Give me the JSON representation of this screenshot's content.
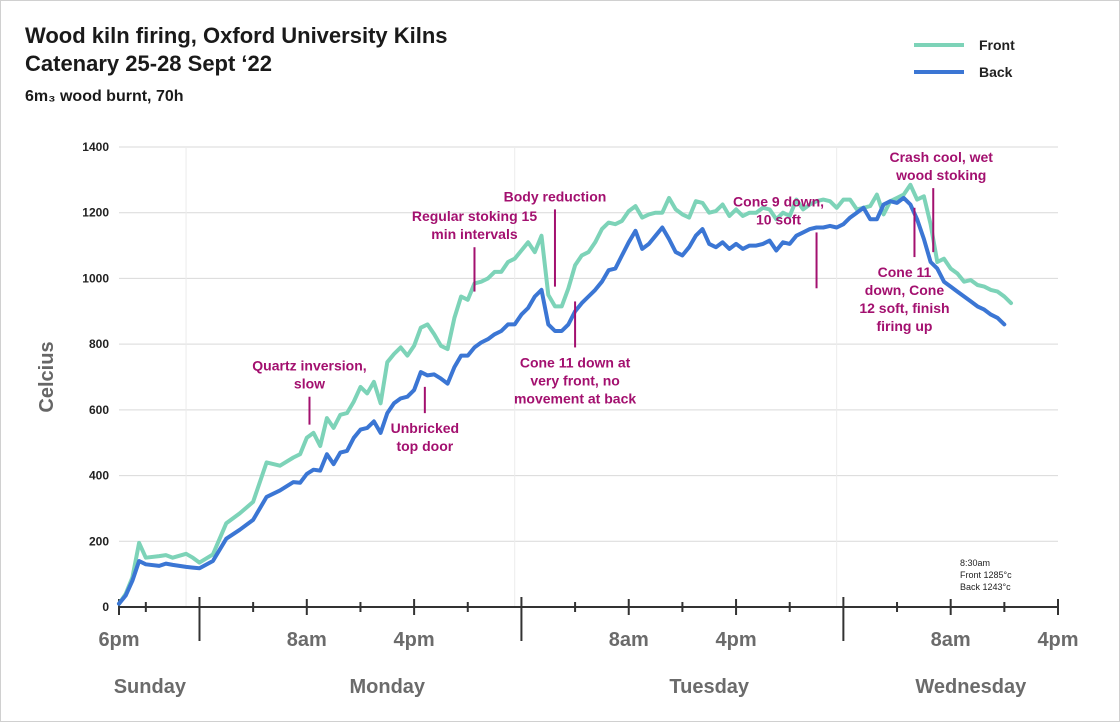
{
  "chart_data": {
    "type": "line",
    "title_lines": [
      "Wood kiln firing, Oxford University Kilns",
      "Catenary 25-28 Sept ‘22"
    ],
    "subtitle": "6m₃ wood burnt, 70h",
    "ylabel": "Celcius",
    "ylim": [
      0,
      1400
    ],
    "xlim": [
      0,
      70
    ],
    "yticks": [
      "0",
      "200",
      "400",
      "600",
      "800",
      "1000",
      "1200",
      "1400"
    ],
    "ytick_values": [
      0,
      200,
      400,
      600,
      800,
      1000,
      1200,
      1400
    ],
    "xticks": [
      {
        "label": "6pm",
        "hour": 0
      },
      {
        "label": "8am",
        "hour": 14
      },
      {
        "label": "4pm",
        "hour": 22
      },
      {
        "label": "8am",
        "hour": 38
      },
      {
        "label": "4pm",
        "hour": 46
      },
      {
        "label": "8am",
        "hour": 62
      },
      {
        "label": "4pm",
        "hour": 70
      }
    ],
    "day_boundaries": [
      6,
      30,
      54
    ],
    "minor_ticks": [
      2,
      10,
      18,
      26,
      34,
      42,
      50,
      58,
      66
    ],
    "days": [
      {
        "label": "Sunday",
        "hour": 2.3
      },
      {
        "label": "Monday",
        "hour": 20
      },
      {
        "label": "Tuesday",
        "hour": 44
      },
      {
        "label": "Wednesday",
        "hour": 63.5
      }
    ],
    "vgrid_hours": [
      5,
      29.5,
      53.5
    ],
    "series": [
      {
        "name": "Front",
        "color": "#7dd3b8",
        "points": [
          [
            0,
            10
          ],
          [
            0.5,
            40
          ],
          [
            1,
            90
          ],
          [
            1.5,
            195
          ],
          [
            2,
            150
          ],
          [
            3,
            155
          ],
          [
            3.5,
            158
          ],
          [
            4,
            150
          ],
          [
            5,
            162
          ],
          [
            5.5,
            150
          ],
          [
            6,
            135
          ],
          [
            7,
            160
          ],
          [
            8,
            255
          ],
          [
            9,
            285
          ],
          [
            10,
            320
          ],
          [
            11,
            440
          ],
          [
            12,
            430
          ],
          [
            13,
            455
          ],
          [
            13.5,
            465
          ],
          [
            14,
            515
          ],
          [
            14.5,
            530
          ],
          [
            15,
            490
          ],
          [
            15.5,
            575
          ],
          [
            16,
            545
          ],
          [
            16.5,
            585
          ],
          [
            17,
            590
          ],
          [
            17.5,
            625
          ],
          [
            18,
            670
          ],
          [
            18.5,
            650
          ],
          [
            19,
            685
          ],
          [
            19.5,
            620
          ],
          [
            20,
            745
          ],
          [
            20.5,
            770
          ],
          [
            21,
            790
          ],
          [
            21.5,
            765
          ],
          [
            22,
            795
          ],
          [
            22.5,
            850
          ],
          [
            23,
            860
          ],
          [
            23.5,
            830
          ],
          [
            24,
            795
          ],
          [
            24.5,
            785
          ],
          [
            25,
            880
          ],
          [
            25.5,
            945
          ],
          [
            26,
            935
          ],
          [
            26.5,
            985
          ],
          [
            27,
            990
          ],
          [
            27.5,
            1000
          ],
          [
            28,
            1020
          ],
          [
            28.5,
            1020
          ],
          [
            29,
            1050
          ],
          [
            29.5,
            1060
          ],
          [
            30,
            1085
          ],
          [
            30.5,
            1110
          ],
          [
            31,
            1080
          ],
          [
            31.5,
            1130
          ],
          [
            32,
            950
          ],
          [
            32.5,
            915
          ],
          [
            33,
            915
          ],
          [
            33.5,
            970
          ],
          [
            34,
            1040
          ],
          [
            34.5,
            1070
          ],
          [
            35,
            1080
          ],
          [
            35.5,
            1110
          ],
          [
            36,
            1150
          ],
          [
            36.5,
            1170
          ],
          [
            37,
            1165
          ],
          [
            37.5,
            1175
          ],
          [
            38,
            1205
          ],
          [
            38.5,
            1220
          ],
          [
            39,
            1185
          ],
          [
            39.5,
            1195
          ],
          [
            40,
            1200
          ],
          [
            40.5,
            1200
          ],
          [
            41,
            1245
          ],
          [
            41.5,
            1210
          ],
          [
            42,
            1195
          ],
          [
            42.5,
            1185
          ],
          [
            43,
            1235
          ],
          [
            43.5,
            1230
          ],
          [
            44,
            1200
          ],
          [
            44.5,
            1205
          ],
          [
            45,
            1225
          ],
          [
            45.5,
            1190
          ],
          [
            46,
            1210
          ],
          [
            46.5,
            1190
          ],
          [
            47,
            1200
          ],
          [
            47.5,
            1200
          ],
          [
            48,
            1215
          ],
          [
            48.5,
            1210
          ],
          [
            49,
            1180
          ],
          [
            49.5,
            1200
          ],
          [
            50,
            1190
          ],
          [
            50.5,
            1240
          ],
          [
            51,
            1210
          ],
          [
            51.5,
            1225
          ],
          [
            52,
            1235
          ],
          [
            52.5,
            1240
          ],
          [
            53,
            1235
          ],
          [
            53.5,
            1215
          ],
          [
            54,
            1240
          ],
          [
            54.5,
            1240
          ],
          [
            55,
            1210
          ],
          [
            55.5,
            1215
          ],
          [
            56,
            1220
          ],
          [
            56.5,
            1255
          ],
          [
            57,
            1195
          ],
          [
            57.5,
            1235
          ],
          [
            58,
            1245
          ],
          [
            58.5,
            1255
          ],
          [
            59,
            1285
          ],
          [
            59.5,
            1240
          ],
          [
            60,
            1250
          ],
          [
            60.5,
            1165
          ],
          [
            61,
            1050
          ],
          [
            61.5,
            1060
          ],
          [
            62,
            1030
          ],
          [
            62.5,
            1015
          ],
          [
            63,
            990
          ],
          [
            63.5,
            995
          ],
          [
            64,
            980
          ],
          [
            64.5,
            975
          ],
          [
            65,
            965
          ],
          [
            65.5,
            960
          ],
          [
            66,
            945
          ],
          [
            66.5,
            925
          ]
        ]
      },
      {
        "name": "Back",
        "color": "#3b76d4",
        "points": [
          [
            0,
            10
          ],
          [
            0.5,
            35
          ],
          [
            1,
            80
          ],
          [
            1.5,
            140
          ],
          [
            2,
            130
          ],
          [
            3,
            125
          ],
          [
            3.5,
            132
          ],
          [
            4,
            128
          ],
          [
            5,
            122
          ],
          [
            5.5,
            120
          ],
          [
            6,
            118
          ],
          [
            7,
            140
          ],
          [
            8,
            208
          ],
          [
            9,
            235
          ],
          [
            10,
            265
          ],
          [
            11,
            335
          ],
          [
            12,
            355
          ],
          [
            13,
            380
          ],
          [
            13.5,
            378
          ],
          [
            14,
            405
          ],
          [
            14.5,
            418
          ],
          [
            15,
            415
          ],
          [
            15.5,
            465
          ],
          [
            16,
            435
          ],
          [
            16.5,
            470
          ],
          [
            17,
            475
          ],
          [
            17.5,
            515
          ],
          [
            18,
            540
          ],
          [
            18.5,
            545
          ],
          [
            19,
            565
          ],
          [
            19.5,
            530
          ],
          [
            20,
            590
          ],
          [
            20.5,
            620
          ],
          [
            21,
            635
          ],
          [
            21.5,
            640
          ],
          [
            22,
            660
          ],
          [
            22.5,
            715
          ],
          [
            23,
            705
          ],
          [
            23.5,
            708
          ],
          [
            24,
            695
          ],
          [
            24.5,
            680
          ],
          [
            25,
            730
          ],
          [
            25.5,
            765
          ],
          [
            26,
            765
          ],
          [
            26.5,
            790
          ],
          [
            27,
            805
          ],
          [
            27.5,
            815
          ],
          [
            28,
            830
          ],
          [
            28.5,
            840
          ],
          [
            29,
            860
          ],
          [
            29.5,
            860
          ],
          [
            30,
            890
          ],
          [
            30.5,
            910
          ],
          [
            31,
            945
          ],
          [
            31.5,
            965
          ],
          [
            32,
            860
          ],
          [
            32.5,
            840
          ],
          [
            33,
            840
          ],
          [
            33.5,
            860
          ],
          [
            34,
            900
          ],
          [
            34.5,
            925
          ],
          [
            35,
            945
          ],
          [
            35.5,
            965
          ],
          [
            36,
            990
          ],
          [
            36.5,
            1025
          ],
          [
            37,
            1030
          ],
          [
            37.5,
            1070
          ],
          [
            38,
            1110
          ],
          [
            38.5,
            1145
          ],
          [
            39,
            1090
          ],
          [
            39.5,
            1105
          ],
          [
            40,
            1130
          ],
          [
            40.5,
            1155
          ],
          [
            41,
            1120
          ],
          [
            41.5,
            1080
          ],
          [
            42,
            1070
          ],
          [
            42.5,
            1095
          ],
          [
            43,
            1130
          ],
          [
            43.5,
            1150
          ],
          [
            44,
            1105
          ],
          [
            44.5,
            1095
          ],
          [
            45,
            1110
          ],
          [
            45.5,
            1090
          ],
          [
            46,
            1105
          ],
          [
            46.5,
            1090
          ],
          [
            47,
            1100
          ],
          [
            47.5,
            1100
          ],
          [
            48,
            1105
          ],
          [
            48.5,
            1115
          ],
          [
            49,
            1085
          ],
          [
            49.5,
            1110
          ],
          [
            50,
            1105
          ],
          [
            50.5,
            1130
          ],
          [
            51,
            1140
          ],
          [
            51.5,
            1150
          ],
          [
            52,
            1155
          ],
          [
            52.5,
            1155
          ],
          [
            53,
            1160
          ],
          [
            53.5,
            1155
          ],
          [
            54,
            1165
          ],
          [
            54.5,
            1185
          ],
          [
            55,
            1200
          ],
          [
            55.5,
            1215
          ],
          [
            56,
            1180
          ],
          [
            56.5,
            1180
          ],
          [
            57,
            1225
          ],
          [
            57.5,
            1235
          ],
          [
            58,
            1230
          ],
          [
            58.5,
            1245
          ],
          [
            59,
            1225
          ],
          [
            59.5,
            1180
          ],
          [
            60,
            1120
          ],
          [
            60.5,
            1050
          ],
          [
            61,
            1030
          ],
          [
            61.5,
            990
          ],
          [
            62,
            975
          ],
          [
            62.5,
            960
          ],
          [
            63,
            945
          ],
          [
            63.5,
            930
          ],
          [
            64,
            915
          ],
          [
            64.5,
            905
          ],
          [
            65,
            890
          ],
          [
            65.5,
            880
          ],
          [
            66,
            860
          ]
        ]
      }
    ],
    "annotations": [
      {
        "lines": [
          "Quartz inversion,",
          "slow"
        ],
        "hour": 14.2,
        "y_top": 640,
        "y_bottom": 555
      },
      {
        "lines": [
          "Unbricked",
          "top door"
        ],
        "hour": 22.8,
        "y_top": 670,
        "y_bottom": 590
      },
      {
        "lines": [
          "Regular stoking 15",
          "min intervals"
        ],
        "hour": 26.5,
        "y_top": 1095,
        "y_bottom": 960
      },
      {
        "lines": [
          "Body reduction"
        ],
        "hour": 32.5,
        "y_top": 1210,
        "y_bottom": 975
      },
      {
        "lines": [
          "Cone 11 down at",
          "very front, no",
          "movement at back"
        ],
        "hour": 34,
        "y_top": 930,
        "y_bottom": 790
      },
      {
        "lines": [
          "Cone 9 down,",
          "10 soft"
        ],
        "hour": 52,
        "y_top": 1140,
        "y_bottom": 970
      },
      {
        "lines": [
          "Cone 11",
          "down, Cone",
          "12 soft, finish",
          "firing up"
        ],
        "hour": 59.3,
        "y_top": 1215,
        "y_bottom": 1065
      },
      {
        "lines": [
          "Crash cool, wet",
          "wood stoking"
        ],
        "hour": 60.7,
        "y_top": 1275,
        "y_bottom": 1080
      }
    ],
    "legend": [
      {
        "name": "Front",
        "color": "#7dd3b8"
      },
      {
        "name": "Back",
        "color": "#3b76d4"
      }
    ],
    "note_lines": [
      "8:30am",
      "Front 1285°c",
      "Back 1243°c"
    ]
  }
}
